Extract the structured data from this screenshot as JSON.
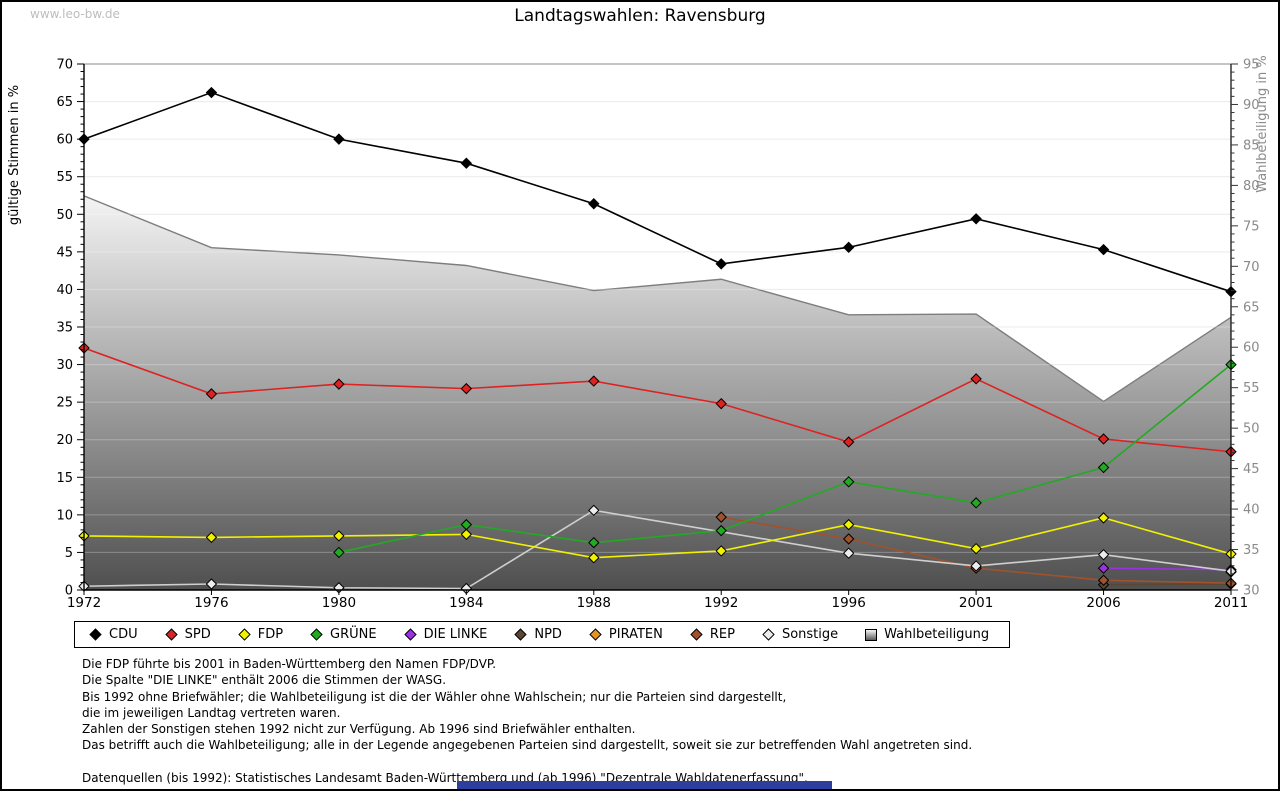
{
  "watermark": "www.leo-bw.de",
  "chart_data": {
    "type": "line",
    "title": "Landtagswahlen: Ravensburg",
    "x": [
      1972,
      1976,
      1980,
      1984,
      1988,
      1992,
      1996,
      2001,
      2006,
      2011
    ],
    "ylabel_left": "gültige Stimmen in %",
    "ylabel_right": "Wahlbeteiligung in %",
    "ylim_left": [
      0,
      70
    ],
    "ylim_right": [
      30,
      95
    ],
    "grid": "horizontal, every 5 units",
    "legend_position": "bottom",
    "series": [
      {
        "name": "CDU",
        "color": "#000000",
        "axis": "left",
        "z": 10,
        "values": [
          60.0,
          66.2,
          60.0,
          56.8,
          51.4,
          43.4,
          45.6,
          49.4,
          45.3,
          39.7
        ]
      },
      {
        "name": "SPD",
        "color": "#dd2222",
        "axis": "left",
        "z": 8,
        "values": [
          32.2,
          26.1,
          27.4,
          26.8,
          27.8,
          24.8,
          19.7,
          28.1,
          20.1,
          18.4
        ]
      },
      {
        "name": "FDP",
        "color": "#f2f200",
        "axis": "left",
        "z": 7,
        "values": [
          7.2,
          7.0,
          7.2,
          7.4,
          4.3,
          5.2,
          8.7,
          5.5,
          9.6,
          4.8
        ]
      },
      {
        "name": "GRÜNE",
        "color": "#22aa22",
        "axis": "left",
        "z": 9,
        "values": [
          null,
          null,
          5.0,
          8.7,
          6.3,
          7.9,
          14.4,
          11.6,
          16.3,
          30.0
        ]
      },
      {
        "name": "DIE LINKE",
        "color": "#9933dd",
        "axis": "left",
        "z": 5,
        "values": [
          null,
          null,
          null,
          null,
          null,
          null,
          null,
          null,
          2.9,
          2.7
        ]
      },
      {
        "name": "NPD",
        "color": "#5a4632",
        "axis": "left",
        "z": 3,
        "values": [
          null,
          null,
          null,
          null,
          null,
          null,
          null,
          null,
          0.7,
          0.8
        ]
      },
      {
        "name": "PIRATEN",
        "color": "#e8921e",
        "axis": "left",
        "z": 1,
        "values": [
          null,
          null,
          null,
          null,
          null,
          null,
          null,
          null,
          null,
          2.4
        ]
      },
      {
        "name": "REP",
        "color": "#a0522d",
        "axis": "left",
        "z": 4,
        "values": [
          null,
          null,
          null,
          null,
          null,
          9.7,
          6.8,
          2.9,
          1.3,
          0.9
        ]
      },
      {
        "name": "Sonstige",
        "color": "#cfcfcf",
        "marker_fill": "#ececec",
        "axis": "left",
        "z": 6,
        "values": [
          0.5,
          0.8,
          0.3,
          0.2,
          10.6,
          null,
          4.9,
          3.2,
          4.7,
          2.5
        ]
      },
      {
        "name": "Wahlbeteiligung",
        "color": "#7d7d7d",
        "axis": "right",
        "z": 0,
        "type": "area",
        "values": [
          78.7,
          72.3,
          71.4,
          70.1,
          67.0,
          68.4,
          64.0,
          64.1,
          53.3,
          63.7
        ]
      }
    ]
  },
  "footnotes": [
    "Die FDP führte bis 2001 in Baden-Württemberg den Namen FDP/DVP.",
    "Die Spalte \"DIE LINKE\" enthält 2006 die Stimmen der WASG.",
    "Bis 1992 ohne Briefwähler; die Wahlbeteiligung ist die der Wähler ohne Wahlschein; nur die Parteien sind dargestellt,",
    "die im jeweiligen Landtag vertreten waren.",
    "Zahlen der Sonstigen stehen 1992 nicht zur Verfügung. Ab 1996 sind Briefwähler enthalten.",
    "Das betrifft auch die Wahlbeteiligung; alle in der Legende angegebenen Parteien sind dargestellt, soweit sie zur betreffenden Wahl angetreten sind.",
    "",
    "Datenquellen (bis 1992): Statistisches Landesamt Baden-Württemberg und (ab 1996) \"Dezentrale Wahldatenerfassung\"."
  ]
}
